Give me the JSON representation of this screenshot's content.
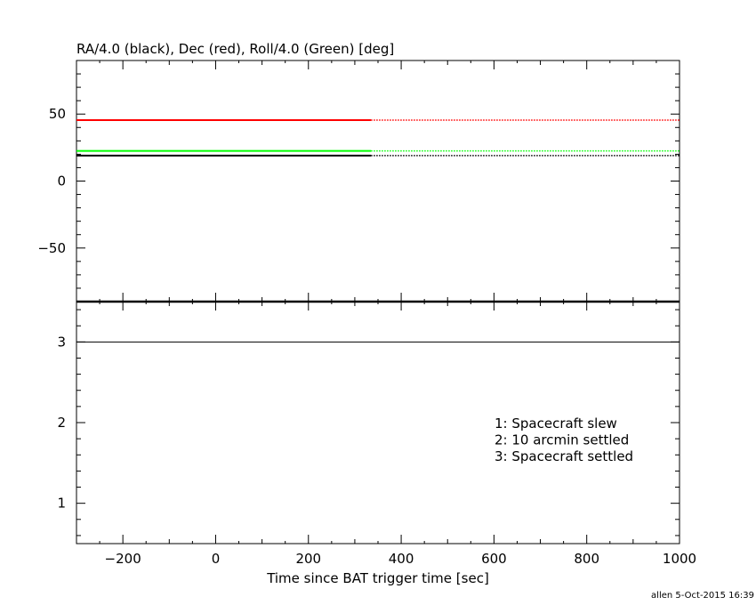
{
  "chart_data": [
    {
      "type": "line",
      "title": "RA/4.0 (black), Dec (red), Roll/4.0 (Green) [deg]",
      "xlim": [
        -300,
        1000
      ],
      "ylim": [
        -90,
        90
      ],
      "yticks": [
        {
          "value": 50,
          "label": "50"
        },
        {
          "value": 0,
          "label": "0"
        },
        {
          "value": -50,
          "label": "−50"
        }
      ],
      "grid": false,
      "series": [
        {
          "color": "#ff0000",
          "solid": [
            [
              -300,
              45.5
            ],
            [
              335,
              45.5
            ]
          ],
          "dotted": [
            [
              335,
              45.5
            ],
            [
              1000,
              45.5
            ]
          ]
        },
        {
          "color": "#00ff00",
          "solid": [
            [
              -300,
              22.5
            ],
            [
              335,
              22.5
            ]
          ],
          "dotted": [
            [
              335,
              22.5
            ],
            [
              1000,
              22.5
            ]
          ]
        },
        {
          "color": "#000000",
          "solid": [
            [
              -300,
              19
            ],
            [
              335,
              19
            ]
          ],
          "dotted": [
            [
              335,
              19
            ],
            [
              1000,
              19
            ]
          ]
        }
      ]
    },
    {
      "type": "line",
      "xlabel": "Time since BAT trigger time [sec]",
      "xlim": [
        -300,
        1000
      ],
      "ylim": [
        0.5,
        3.5
      ],
      "xticks": [
        {
          "value": -200,
          "label": "−200"
        },
        {
          "value": 0,
          "label": "0"
        },
        {
          "value": 200,
          "label": "200"
        },
        {
          "value": 400,
          "label": "400"
        },
        {
          "value": 600,
          "label": "600"
        },
        {
          "value": 800,
          "label": "800"
        },
        {
          "value": 1000,
          "label": "1000"
        }
      ],
      "yticks": [
        {
          "value": 3,
          "label": "3"
        },
        {
          "value": 2,
          "label": "2"
        },
        {
          "value": 1,
          "label": "1"
        }
      ],
      "grid": false,
      "series": [
        {
          "color": "#000000",
          "solid": [
            [
              -300,
              3
            ],
            [
              1000,
              3
            ]
          ]
        }
      ],
      "legend": {
        "placement": "right",
        "lines": [
          "1: Spacecraft slew",
          "2: 10 arcmin settled",
          "3: Spacecraft settled"
        ]
      }
    }
  ],
  "footer": {
    "stamp": "allen  5-Oct-2015 16:39"
  }
}
